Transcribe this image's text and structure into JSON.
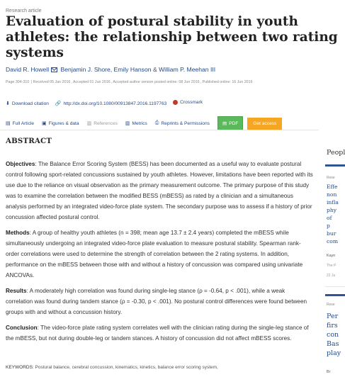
{
  "article_type": "Research article",
  "title": "Evaluation of postural stability in youth athletes: the relationship between two rating systems",
  "authors": {
    "first": "David R. Howell",
    "others": "Benjamin J. Shore, Emily Hanson",
    "amp": "&",
    "last": "William P. Meehan III"
  },
  "meta": {
    "pages": "Page 304-310",
    "received": "Received 05 Jan 2016",
    "accepted": "Accepted 01 Jun 2016",
    "author_version": "Accepted author version posted online: 08 Jun 2016",
    "published": "Published online: 16 Jun 2016"
  },
  "links": {
    "download": "Download citation",
    "doi": "http://dx.doi.org/10.1080/00913847.2016.1197763",
    "crossmark": "Crossmark"
  },
  "tabs": {
    "full_article": "Full Article",
    "figures": "Figures & data",
    "references": "References",
    "metrics": "Metrics",
    "reprints": "Reprints & Permissions",
    "pdf": "PDF",
    "get_access": "Get access"
  },
  "abstract": {
    "heading": "ABSTRACT",
    "objectives_label": "Objectives",
    "objectives": ": The Balance Error Scoring System (BESS) has been documented as a useful way to evaluate postural control following sport-related concussions sustained by youth athletes. However, limitations have been reported with its use due to the reliance on visual observation as the primary measurement outcome. The primary purpose of this study was to examine the correlation between the modified BESS (mBESS) as rated by a clinician and a simultaneous analysis performed by an integrated video-force plate system. The secondary purpose was to assess if a history of prior concussion affected postural control.",
    "methods_label": "Methods",
    "methods": ": A group of healthy youth athletes (n = 398; mean age 13.7 ± 2.4 years) completed the mBESS while simultaneously undergoing an integrated video-force plate evaluation to measure postural stability. Spearman rank-order correlations were used to determine the strength of correlation between the 2 rating systems. In addition, performance on the mBESS between those with and without a history of concussion was compared using univariate ANCOVAs.",
    "results_label": "Results",
    "results": ": A moderately high correlation was found during single-leg stance (ρ = -0.64, p < .001), while a weak correlation was found during tandem stance (ρ = -0.30, p < .001). No postural control differences were found between groups with and without a concussion history.",
    "conclusion_label": "Conclusion",
    "conclusion": ": The video-force plate rating system correlates well with the clinician rating during the single-leg stance of the mBESS, but not during double-leg or tandem stances. A history of concussion did not affect mBESS scores."
  },
  "keywords": {
    "label": "KEYWORDS:",
    "items": "Postural balance, cerebral concussion, kinematics, kinetics, balance error scoring system,"
  },
  "sidebar": {
    "people_heading": "Peopl",
    "card1": {
      "label": "Rese",
      "title": "Effe non infla phy of p bur com",
      "author": "Kayn",
      "meta_1": "The P",
      "meta_2": "22 Ju"
    },
    "card2": {
      "label": "Rese",
      "title": "Per firs con Bas play",
      "author": "Br"
    }
  },
  "colors": {
    "link": "#234a8a",
    "pdf_button": "#5cb85c",
    "access_button": "#f5a623",
    "sidebar_bar": "#2f5597"
  }
}
